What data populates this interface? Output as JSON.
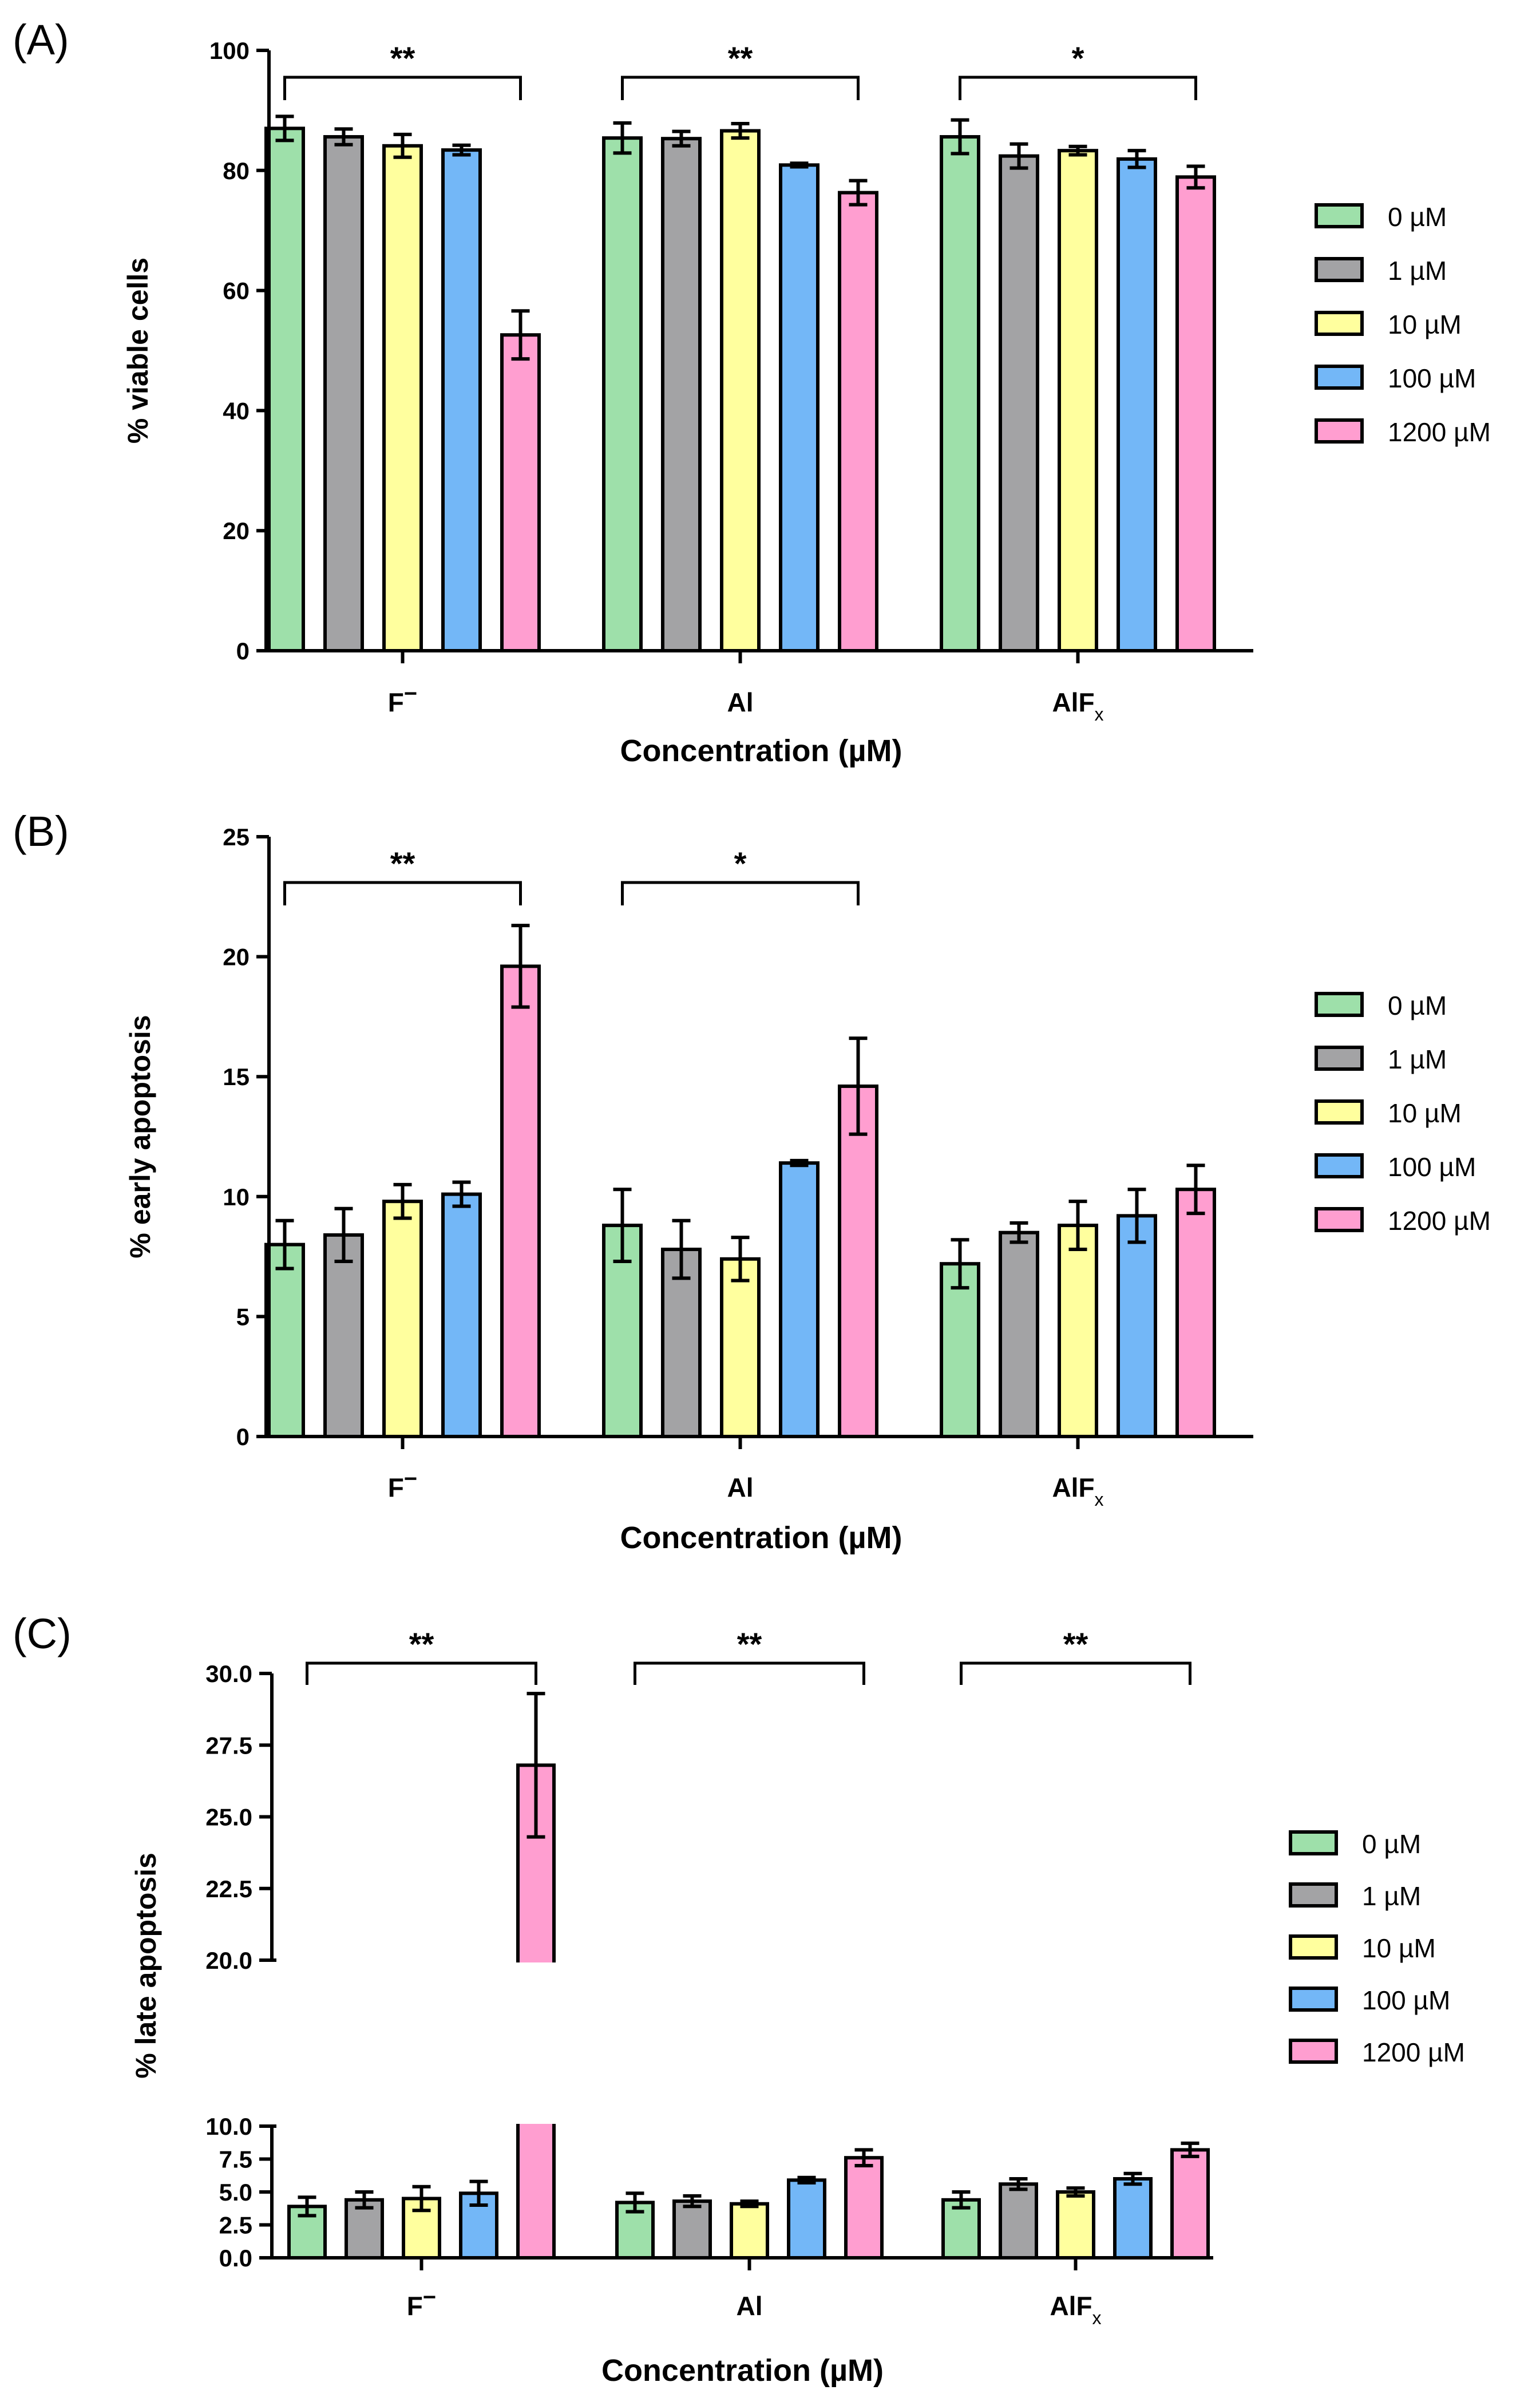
{
  "legend_labels": [
    "0 µM",
    "1 µM",
    "10 µM",
    "100 µM",
    "1200 µM"
  ],
  "colors": [
    "#9ee0aa",
    "#a3a3a5",
    "#ffff9e",
    "#73b7f7",
    "#ff9ed0"
  ],
  "chart_data": [
    {
      "panel_label": "(A)",
      "type": "bar",
      "categories": [
        "F",
        "Al",
        "AlF"
      ],
      "category_marks": [
        "−",
        "",
        "x"
      ],
      "series_names": [
        "0 µM",
        "1 µM",
        "10 µM",
        "100 µM",
        "1200 µM"
      ],
      "values": [
        [
          87.0,
          85.6,
          84.1,
          83.4,
          52.6
        ],
        [
          85.4,
          85.3,
          86.6,
          80.9,
          76.3
        ],
        [
          85.6,
          82.4,
          83.3,
          81.9,
          78.9
        ]
      ],
      "errors": [
        [
          2.0,
          1.3,
          1.9,
          0.8,
          4.0
        ],
        [
          2.5,
          1.2,
          1.2,
          0.3,
          2.0
        ],
        [
          2.8,
          2.0,
          0.7,
          1.4,
          1.8
        ]
      ],
      "xlabel": "Concentration (µM)",
      "ylabel": "% viable cells",
      "ylim": [
        0,
        100
      ],
      "yticks": [
        "0",
        "20",
        "40",
        "60",
        "80",
        "100"
      ],
      "significance": [
        {
          "group": 0,
          "from": 0,
          "to": 4,
          "label": "**"
        },
        {
          "group": 1,
          "from": 0,
          "to": 4,
          "label": "**"
        },
        {
          "group": 2,
          "from": 0,
          "to": 4,
          "label": "*"
        }
      ]
    },
    {
      "panel_label": "(B)",
      "type": "bar",
      "categories": [
        "F",
        "Al",
        "AlF"
      ],
      "category_marks": [
        "−",
        "",
        "x"
      ],
      "series_names": [
        "0 µM",
        "1 µM",
        "10 µM",
        "100 µM",
        "1200 µM"
      ],
      "values": [
        [
          8.0,
          8.4,
          9.8,
          10.1,
          19.6
        ],
        [
          8.8,
          7.8,
          7.4,
          11.4,
          14.6
        ],
        [
          7.2,
          8.5,
          8.8,
          9.2,
          10.3
        ]
      ],
      "errors": [
        [
          1.0,
          1.1,
          0.7,
          0.5,
          1.7
        ],
        [
          1.5,
          1.2,
          0.9,
          0.1,
          2.0
        ],
        [
          1.0,
          0.4,
          1.0,
          1.1,
          1.0
        ]
      ],
      "xlabel": "Concentration (µM)",
      "ylabel": "% early apoptosis",
      "ylim": [
        0,
        25
      ],
      "yticks": [
        "0",
        "5",
        "10",
        "15",
        "20",
        "25"
      ],
      "significance": [
        {
          "group": 0,
          "from": 0,
          "to": 4,
          "label": "**"
        },
        {
          "group": 1,
          "from": 0,
          "to": 4,
          "label": "*"
        }
      ]
    },
    {
      "panel_label": "(C)",
      "type": "bar",
      "categories": [
        "F",
        "Al",
        "AlF"
      ],
      "category_marks": [
        "−",
        "",
        "x"
      ],
      "series_names": [
        "0 µM",
        "1 µM",
        "10 µM",
        "100 µM",
        "1200 µM"
      ],
      "values": [
        [
          3.9,
          4.4,
          4.5,
          4.9,
          26.8
        ],
        [
          4.2,
          4.3,
          4.1,
          5.9,
          7.6
        ],
        [
          4.4,
          5.6,
          5.0,
          6.0,
          8.2
        ]
      ],
      "errors": [
        [
          0.7,
          0.6,
          0.9,
          0.9,
          2.5
        ],
        [
          0.7,
          0.4,
          0.2,
          0.2,
          0.6
        ],
        [
          0.6,
          0.4,
          0.3,
          0.4,
          0.5
        ]
      ],
      "xlabel": "Concentration (µM)",
      "ylabel": "% late apoptosis",
      "ylim": [
        0,
        30
      ],
      "axis_break": [
        10,
        20
      ],
      "yticks": [
        "0.0",
        "2.5",
        "5.0",
        "7.5",
        "10.0",
        "20.0",
        "22.5",
        "25.0",
        "27.5",
        "30.0"
      ],
      "significance": [
        {
          "group": 0,
          "from": 0,
          "to": 4,
          "label": "**"
        },
        {
          "group": 1,
          "from": 0,
          "to": 4,
          "label": "**"
        },
        {
          "group": 2,
          "from": 0,
          "to": 4,
          "label": "**"
        }
      ]
    }
  ]
}
